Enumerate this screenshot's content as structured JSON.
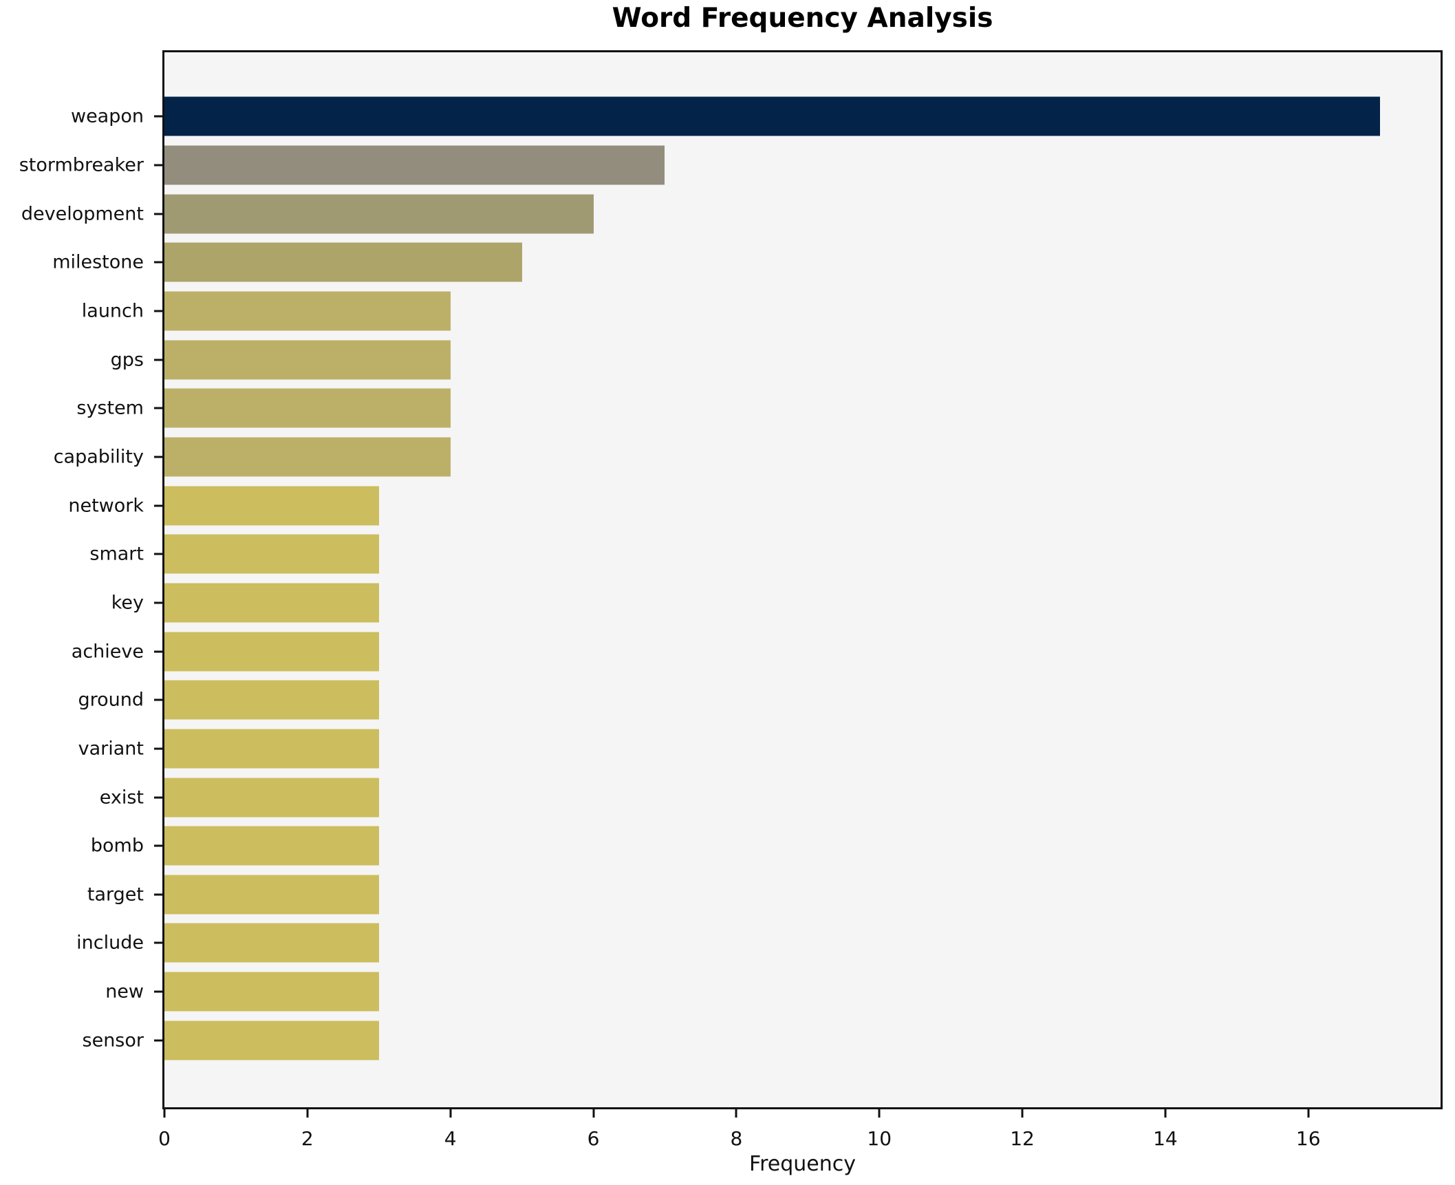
{
  "title": "Word Frequency Analysis",
  "chart_data": {
    "type": "bar",
    "orientation": "horizontal",
    "title": "Word Frequency Analysis",
    "xlabel": "Frequency",
    "ylabel": "",
    "categories": [
      "weapon",
      "stormbreaker",
      "development",
      "milestone",
      "launch",
      "gps",
      "system",
      "capability",
      "network",
      "smart",
      "key",
      "achieve",
      "ground",
      "variant",
      "exist",
      "bomb",
      "target",
      "include",
      "new",
      "sensor"
    ],
    "values": [
      17,
      7,
      6,
      5,
      4,
      4,
      4,
      4,
      3,
      3,
      3,
      3,
      3,
      3,
      3,
      3,
      3,
      3,
      3,
      3
    ],
    "bar_colors": [
      "#042349",
      "#938d7d",
      "#a09a73",
      "#aca469",
      "#bcb069",
      "#bcb069",
      "#bcb069",
      "#bcb069",
      "#ccbd5e",
      "#ccbd5e",
      "#ccbd5e",
      "#ccbd5e",
      "#ccbd5e",
      "#ccbd5e",
      "#ccbd5e",
      "#ccbd5e",
      "#ccbd5e",
      "#ccbd5e",
      "#ccbd5e",
      "#ccbd5e"
    ],
    "xlim": [
      0,
      17.85
    ],
    "xticks": [
      0,
      2,
      4,
      6,
      8,
      10,
      12,
      14,
      16
    ],
    "grid": false,
    "legend": null,
    "plot_bg": "#f5f5f5",
    "figure_bg": "#ffffff",
    "spine_color": "#111111",
    "text_color": "#111111"
  }
}
